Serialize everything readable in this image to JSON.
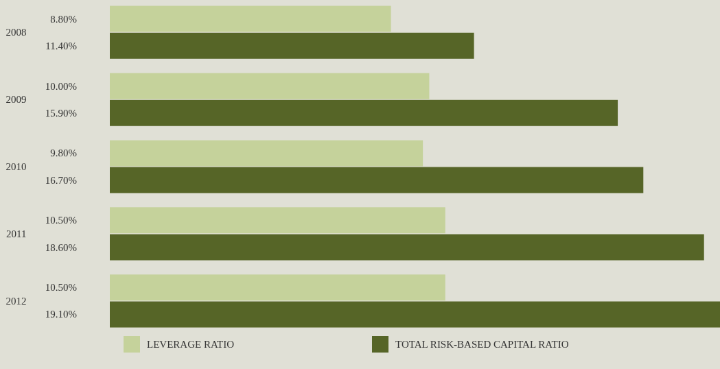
{
  "chart_data": {
    "type": "bar",
    "orientation": "horizontal",
    "categories": [
      "2008",
      "2009",
      "2010",
      "2011",
      "2012"
    ],
    "xlim": [
      0,
      19.1
    ],
    "tick_labels": "y",
    "grid": false,
    "legend": "bottom",
    "series": [
      {
        "name": "LEVERAGE RATIO",
        "color": "#c5d29b",
        "values": [
          8.8,
          10.0,
          9.8,
          10.5,
          10.5
        ],
        "value_labels": [
          "8.80%",
          "10.00%",
          "9.80%",
          "10.50%",
          "10.50%"
        ]
      },
      {
        "name": "TOTAL RISK-BASED CAPITAL RATIO",
        "color": "#566527",
        "values": [
          11.4,
          15.9,
          16.7,
          18.6,
          19.1
        ],
        "value_labels": [
          "11.40%",
          "15.90%",
          "16.70%",
          "18.60%",
          "19.10%"
        ]
      }
    ]
  }
}
